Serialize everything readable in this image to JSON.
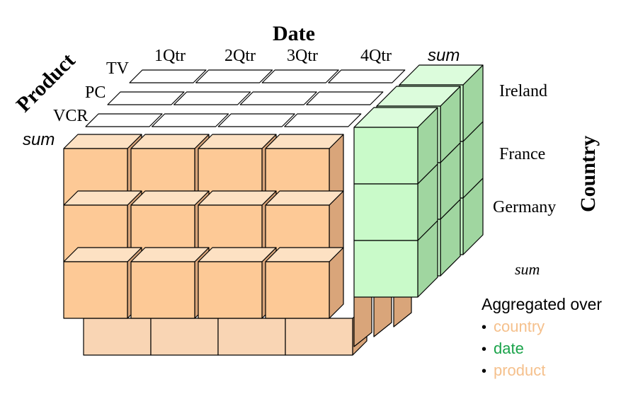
{
  "axes": {
    "date_title": "Date",
    "product_title": "Product",
    "country_title": "Country"
  },
  "date_labels": [
    "1Qtr",
    "2Qtr",
    "3Qtr",
    "4Qtr",
    "sum"
  ],
  "product_labels": [
    "TV",
    "PC",
    "VCR",
    "sum"
  ],
  "country_labels": [
    "Ireland",
    "France",
    "Germany",
    "sum"
  ],
  "legend": {
    "title": "Aggregated over",
    "bullet": "•",
    "items": [
      {
        "label": "country",
        "color": "#f5c08c"
      },
      {
        "label": "date",
        "color": "#1aa34a"
      },
      {
        "label": "product",
        "color": "#f5c08c"
      }
    ]
  },
  "colors": {
    "orange_front": "#fdc996",
    "orange_top": "#fde1c3",
    "orange_side": "#d9a57a",
    "orange_bottom": "#f9d5b4",
    "green_front": "#c9fac9",
    "green_top": "#dcfcdc",
    "green_side": "#a0d6a0",
    "white_top": "#ffffff",
    "edge": "#000000"
  }
}
